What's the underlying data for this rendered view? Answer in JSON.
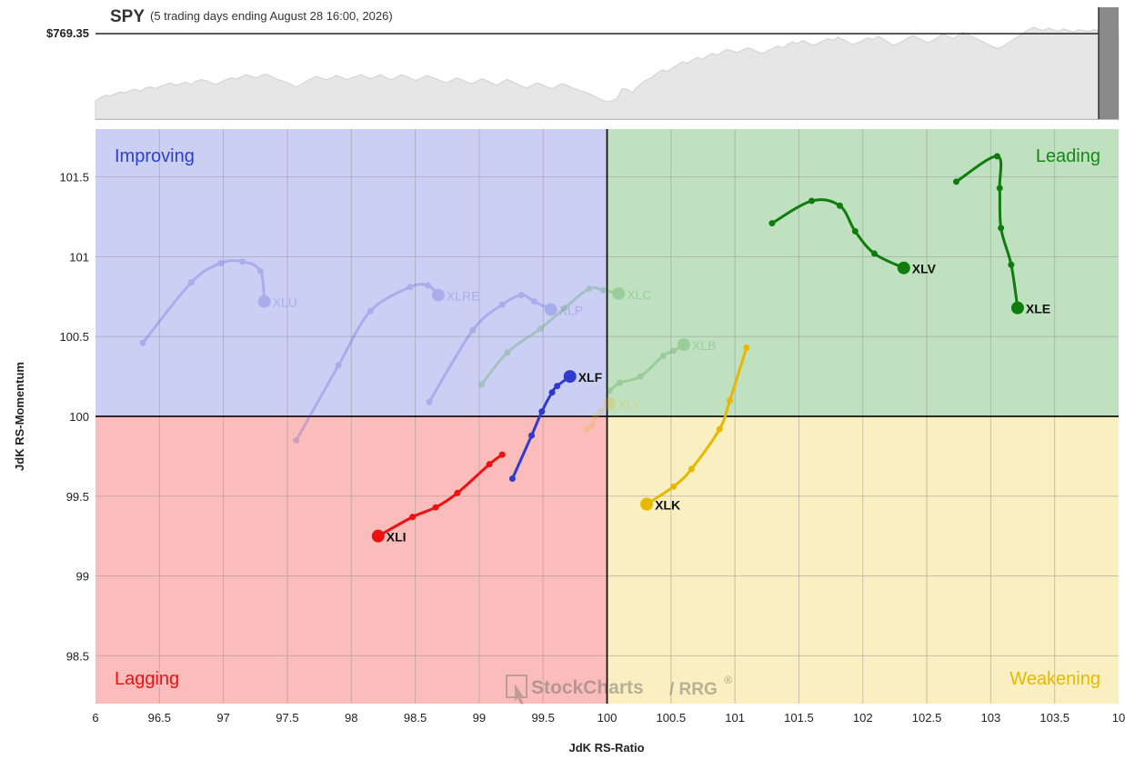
{
  "header": {
    "symbol": "SPY",
    "subtitle": "(5 trading days ending August 28 16:00, 2026)",
    "price_label": "$769.35"
  },
  "quadrants": {
    "improving": {
      "label": "Improving",
      "color": "#cccff4",
      "label_color": "#2b3fd0"
    },
    "leading": {
      "label": "Leading",
      "color": "#c0e1c0",
      "label_color": "#138a13"
    },
    "lagging": {
      "label": "Lagging",
      "color": "#fbbcbc",
      "label_color": "#ee1111"
    },
    "weakening": {
      "label": "Weakening",
      "color": "#f9efc0",
      "label_color": "#e7b800"
    }
  },
  "watermark": {
    "brand": "StockCharts",
    "product": "/ RRG",
    "mark": "®"
  },
  "chart_data": [
    {
      "type": "line",
      "title": "SPY",
      "subtitle": "(5 trading days ending August 28 16:00, 2026)",
      "price_label": "$769.35",
      "grid": false,
      "y": [
        0.1,
        0.14,
        0.17,
        0.16,
        0.19,
        0.21,
        0.2,
        0.23,
        0.24,
        0.22,
        0.26,
        0.27,
        0.25,
        0.28,
        0.3,
        0.32,
        0.29,
        0.31,
        0.33,
        0.3,
        0.34,
        0.36,
        0.35,
        0.32,
        0.3,
        0.33,
        0.36,
        0.38,
        0.37,
        0.39,
        0.42,
        0.4,
        0.38,
        0.41,
        0.43,
        0.4,
        0.37,
        0.35,
        0.33,
        0.3,
        0.27,
        0.3,
        0.34,
        0.37,
        0.4,
        0.38,
        0.36,
        0.38,
        0.41,
        0.39,
        0.36,
        0.38,
        0.4,
        0.42,
        0.39,
        0.37,
        0.4,
        0.42,
        0.38,
        0.36,
        0.39,
        0.42,
        0.4,
        0.37,
        0.35,
        0.38,
        0.41,
        0.39,
        0.37,
        0.34,
        0.32,
        0.35,
        0.38,
        0.36,
        0.33,
        0.31,
        0.34,
        0.37,
        0.35,
        0.32,
        0.29,
        0.33,
        0.36,
        0.34,
        0.31,
        0.28,
        0.26,
        0.29,
        0.32,
        0.3,
        0.27,
        0.25,
        0.28,
        0.31,
        0.29,
        0.26,
        0.24,
        0.22,
        0.2,
        0.17,
        0.14,
        0.11,
        0.09,
        0.1,
        0.13,
        0.25,
        0.24,
        0.2,
        0.27,
        0.32,
        0.36,
        0.39,
        0.44,
        0.48,
        0.46,
        0.5,
        0.54,
        0.58,
        0.56,
        0.6,
        0.63,
        0.61,
        0.65,
        0.68,
        0.66,
        0.7,
        0.73,
        0.71,
        0.69,
        0.72,
        0.75,
        0.73,
        0.7,
        0.68,
        0.71,
        0.74,
        0.77,
        0.75,
        0.79,
        0.82,
        0.8,
        0.84,
        0.81,
        0.78,
        0.8,
        0.83,
        0.86,
        0.84,
        0.88,
        0.85,
        0.82,
        0.79,
        0.81,
        0.84,
        0.87,
        0.85,
        0.89,
        0.86,
        0.82,
        0.78,
        0.8,
        0.83,
        0.87,
        0.9,
        0.87,
        0.84,
        0.81,
        0.84,
        0.88,
        0.92,
        0.89,
        0.86,
        0.9,
        0.94,
        0.91,
        0.88,
        0.85,
        0.82,
        0.79,
        0.76,
        0.74,
        0.77,
        0.81,
        0.85,
        0.89,
        0.93,
        0.97,
        1.0,
        0.98,
        0.96,
        0.99,
        0.97,
        0.95,
        0.98,
        0.96,
        0.94,
        0.97,
        0.96,
        0.95,
        0.97,
        0.96,
        0.95,
        0.96,
        0.97,
        0.96
      ]
    },
    {
      "type": "scatter",
      "title": "",
      "xlabel": "JdK RS-Ratio",
      "ylabel": "JdK RS-Momentum",
      "xlim": [
        96,
        104
      ],
      "ylim": [
        98.2,
        101.8
      ],
      "x_ticks": [
        "6",
        "96.5",
        "97",
        "97.5",
        "98",
        "98.5",
        "99",
        "99.5",
        "100",
        "100.5",
        "101",
        "101.5",
        "102",
        "102.5",
        "103",
        "103.5",
        "10"
      ],
      "y_ticks": [
        "98.5",
        "99",
        "99.5",
        "100",
        "100.5",
        "101",
        "101.5"
      ],
      "center": [
        100,
        100
      ],
      "grid": true,
      "series": [
        {
          "name": "XLU",
          "color": "#2e3ad0",
          "faded": true,
          "x": [
            96.37,
            96.75,
            96.98,
            97.15,
            97.29,
            97.32
          ],
          "y": [
            100.46,
            100.84,
            100.96,
            100.97,
            100.91,
            100.72
          ]
        },
        {
          "name": "XLRE",
          "color": "#2e3ad0",
          "faded": true,
          "x": [
            97.57,
            97.9,
            98.15,
            98.46,
            98.6,
            98.68
          ],
          "y": [
            99.85,
            100.32,
            100.66,
            100.81,
            100.82,
            100.76
          ]
        },
        {
          "name": "XLP",
          "color": "#2e3ad0",
          "faded": true,
          "x": [
            98.61,
            98.95,
            99.18,
            99.33,
            99.43,
            99.56
          ],
          "y": [
            100.09,
            100.54,
            100.7,
            100.76,
            100.72,
            100.67
          ]
        },
        {
          "name": "XLC",
          "color": "#15901a",
          "faded": true,
          "x": [
            99.02,
            99.22,
            99.48,
            99.67,
            99.86,
            99.97,
            100.09
          ],
          "y": [
            100.2,
            100.4,
            100.55,
            100.68,
            100.8,
            100.79,
            100.77
          ]
        },
        {
          "name": "XLB",
          "color": "#15901a",
          "faded": true,
          "x": [
            100.02,
            100.1,
            100.26,
            100.44,
            100.52,
            100.6
          ],
          "y": [
            100.16,
            100.21,
            100.25,
            100.38,
            100.41,
            100.45
          ]
        },
        {
          "name": "XLY",
          "color": "#e0b000",
          "faded": true,
          "x": [
            99.84,
            99.88,
            99.91,
            99.95,
            100.02
          ],
          "y": [
            99.92,
            99.94,
            100.0,
            100.03,
            100.08
          ]
        },
        {
          "name": "XLF",
          "color": "#2e3ad0",
          "faded": false,
          "x": [
            99.26,
            99.41,
            99.49,
            99.57,
            99.61,
            99.71
          ],
          "y": [
            99.61,
            99.88,
            100.03,
            100.15,
            100.19,
            100.25
          ]
        },
        {
          "name": "XLI",
          "color": "#ee1111",
          "faded": false,
          "x": [
            99.18,
            99.08,
            98.83,
            98.66,
            98.48,
            98.21
          ],
          "y": [
            99.76,
            99.7,
            99.52,
            99.43,
            99.37,
            99.25
          ]
        },
        {
          "name": "XLK",
          "color": "#e7b800",
          "faded": false,
          "x": [
            101.09,
            100.96,
            100.88,
            100.66,
            100.52,
            100.31
          ],
          "y": [
            100.43,
            100.1,
            99.92,
            99.67,
            99.56,
            99.45
          ]
        },
        {
          "name": "XLV",
          "color": "#0e7d0e",
          "faded": false,
          "x": [
            101.29,
            101.6,
            101.82,
            101.94,
            102.09,
            102.32
          ],
          "y": [
            101.21,
            101.35,
            101.32,
            101.16,
            101.02,
            100.93
          ]
        },
        {
          "name": "XLE",
          "color": "#0e7d0e",
          "faded": false,
          "x": [
            102.73,
            103.05,
            103.07,
            103.08,
            103.16,
            103.21
          ],
          "y": [
            101.47,
            101.63,
            101.43,
            101.18,
            100.95,
            100.68
          ]
        }
      ]
    }
  ]
}
